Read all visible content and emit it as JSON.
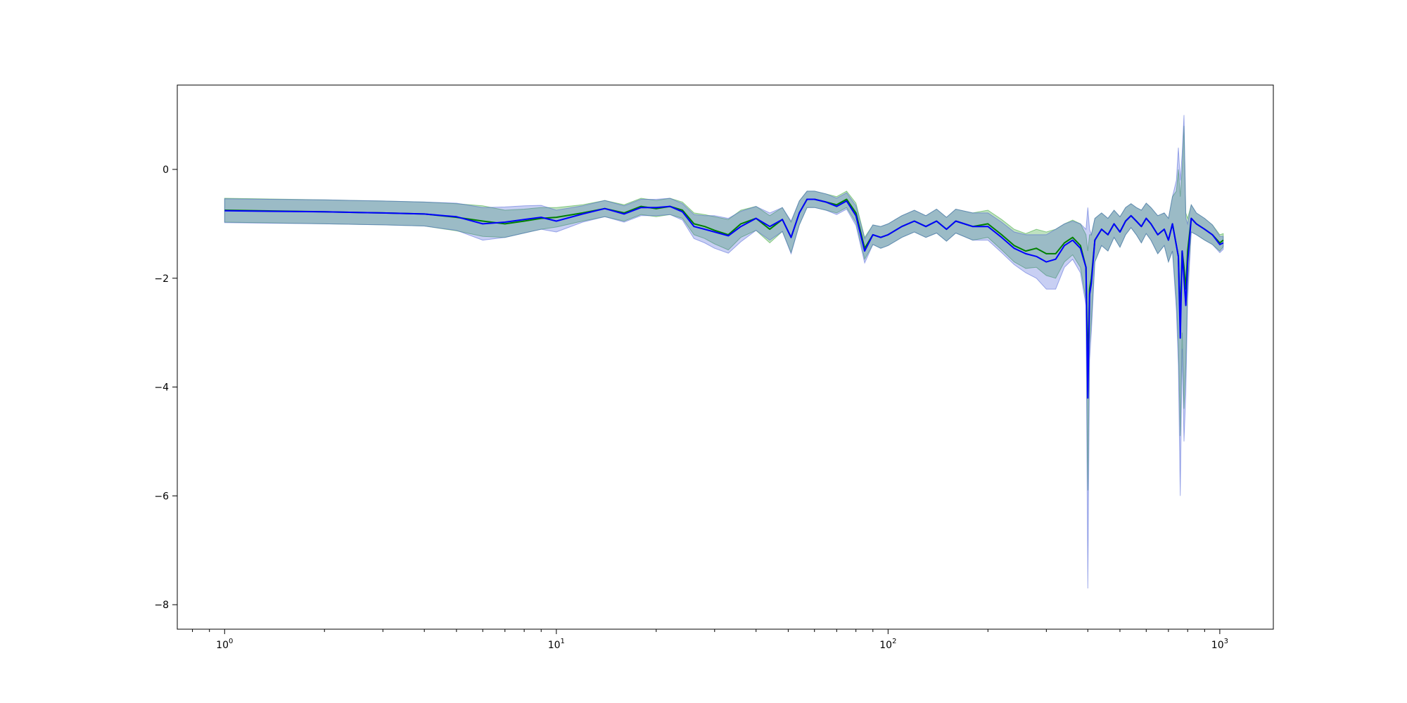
{
  "chart_data": {
    "type": "line",
    "title": "",
    "xlabel": "",
    "ylabel": "",
    "x_scale": "log",
    "xlim": [
      0.72,
      1450
    ],
    "ylim": [
      -8.45,
      1.55
    ],
    "grid": false,
    "legend": "none",
    "x_ticks": [
      {
        "value": 1,
        "base": "10",
        "exp": "0"
      },
      {
        "value": 10,
        "base": "10",
        "exp": "1"
      },
      {
        "value": 100,
        "base": "10",
        "exp": "2"
      },
      {
        "value": 1000,
        "base": "10",
        "exp": "3"
      }
    ],
    "y_ticks": [
      {
        "value": 0,
        "label": "0"
      },
      {
        "value": -2,
        "label": "−2"
      },
      {
        "value": -4,
        "label": "−4"
      },
      {
        "value": -6,
        "label": "−6"
      },
      {
        "value": -8,
        "label": "−8"
      }
    ],
    "series": [
      {
        "color": "#008000",
        "band_color": "#2ca02c",
        "x": [
          1,
          2,
          3,
          4,
          5,
          6,
          7,
          8,
          9,
          10,
          12,
          14,
          16,
          18,
          20,
          22,
          24,
          26,
          28,
          30,
          33,
          36,
          40,
          44,
          48,
          51,
          54,
          57,
          60,
          65,
          70,
          75,
          80,
          85,
          90,
          95,
          100,
          110,
          120,
          130,
          140,
          150,
          160,
          180,
          200,
          220,
          240,
          260,
          280,
          300,
          320,
          340,
          360,
          380,
          395,
          400,
          405,
          410,
          420,
          440,
          460,
          480,
          500,
          520,
          540,
          560,
          580,
          600,
          620,
          650,
          680,
          700,
          720,
          740,
          750,
          760,
          770,
          780,
          790,
          800,
          820,
          850,
          900,
          950,
          1000,
          1024
        ],
        "y": [
          -0.75,
          -0.78,
          -0.8,
          -0.82,
          -0.88,
          -0.95,
          -1.0,
          -0.95,
          -0.9,
          -0.88,
          -0.8,
          -0.72,
          -0.8,
          -0.68,
          -0.72,
          -0.68,
          -0.75,
          -1.0,
          -1.05,
          -1.12,
          -1.2,
          -1.0,
          -0.9,
          -1.1,
          -0.92,
          -1.25,
          -0.8,
          -0.55,
          -0.55,
          -0.6,
          -0.65,
          -0.55,
          -0.8,
          -1.45,
          -1.2,
          -1.25,
          -1.2,
          -1.05,
          -0.95,
          -1.05,
          -0.95,
          -1.1,
          -0.95,
          -1.05,
          -1.0,
          -1.2,
          -1.4,
          -1.5,
          -1.45,
          -1.55,
          -1.55,
          -1.35,
          -1.25,
          -1.4,
          -1.8,
          -3.7,
          -2.2,
          -2.0,
          -1.3,
          -1.1,
          -1.2,
          -1.0,
          -1.15,
          -0.95,
          -0.85,
          -0.95,
          -1.05,
          -0.9,
          -1.0,
          -1.2,
          -1.1,
          -1.3,
          -1.0,
          -1.4,
          -1.6,
          -2.7,
          -1.5,
          -1.8,
          -2.2,
          -1.5,
          -0.9,
          -1.0,
          -1.1,
          -1.2,
          -1.35,
          -1.3
        ],
        "band": [
          0.22,
          0.22,
          0.22,
          0.22,
          0.25,
          0.28,
          0.25,
          0.22,
          0.2,
          0.18,
          0.15,
          0.15,
          0.15,
          0.15,
          0.15,
          0.15,
          0.15,
          0.2,
          0.22,
          0.25,
          0.28,
          0.25,
          0.22,
          0.25,
          0.22,
          0.28,
          0.22,
          0.15,
          0.15,
          0.15,
          0.15,
          0.15,
          0.18,
          0.2,
          0.18,
          0.2,
          0.2,
          0.2,
          0.2,
          0.2,
          0.22,
          0.22,
          0.22,
          0.25,
          0.25,
          0.28,
          0.3,
          0.32,
          0.35,
          0.4,
          0.45,
          0.35,
          0.32,
          0.4,
          0.6,
          2.2,
          1.0,
          0.8,
          0.4,
          0.3,
          0.3,
          0.25,
          0.28,
          0.25,
          0.22,
          0.25,
          0.3,
          0.28,
          0.3,
          0.35,
          0.3,
          0.4,
          0.5,
          1.0,
          1.6,
          2.2,
          1.5,
          2.6,
          1.4,
          0.6,
          0.25,
          0.2,
          0.2,
          0.18,
          0.15,
          0.12
        ]
      },
      {
        "color": "#0000ff",
        "band_color": "#4a5fd8",
        "x": [
          1,
          2,
          3,
          4,
          5,
          6,
          7,
          8,
          9,
          10,
          12,
          14,
          16,
          18,
          20,
          22,
          24,
          26,
          28,
          30,
          33,
          36,
          40,
          44,
          48,
          51,
          54,
          57,
          60,
          65,
          70,
          75,
          80,
          85,
          90,
          95,
          100,
          110,
          120,
          130,
          140,
          150,
          160,
          180,
          200,
          220,
          240,
          260,
          280,
          300,
          320,
          340,
          360,
          380,
          395,
          400,
          405,
          410,
          420,
          440,
          460,
          480,
          500,
          520,
          540,
          560,
          580,
          600,
          620,
          650,
          680,
          700,
          720,
          740,
          750,
          760,
          770,
          780,
          790,
          800,
          820,
          850,
          900,
          950,
          1000,
          1024
        ],
        "y": [
          -0.76,
          -0.78,
          -0.8,
          -0.82,
          -0.87,
          -1.0,
          -0.97,
          -0.92,
          -0.88,
          -0.95,
          -0.82,
          -0.72,
          -0.82,
          -0.7,
          -0.7,
          -0.68,
          -0.78,
          -1.05,
          -1.1,
          -1.15,
          -1.22,
          -1.05,
          -0.9,
          -1.05,
          -0.92,
          -1.25,
          -0.8,
          -0.55,
          -0.55,
          -0.6,
          -0.68,
          -0.58,
          -0.85,
          -1.5,
          -1.2,
          -1.25,
          -1.2,
          -1.05,
          -0.95,
          -1.05,
          -0.95,
          -1.1,
          -0.95,
          -1.05,
          -1.05,
          -1.25,
          -1.45,
          -1.55,
          -1.6,
          -1.7,
          -1.65,
          -1.4,
          -1.3,
          -1.45,
          -1.8,
          -4.2,
          -2.3,
          -2.1,
          -1.3,
          -1.1,
          -1.2,
          -1.0,
          -1.15,
          -0.95,
          -0.85,
          -0.95,
          -1.05,
          -0.9,
          -1.0,
          -1.2,
          -1.1,
          -1.3,
          -1.0,
          -1.4,
          -1.6,
          -3.1,
          -1.5,
          -2.0,
          -2.5,
          -1.7,
          -0.9,
          -1.0,
          -1.1,
          -1.2,
          -1.38,
          -1.35
        ],
        "band": [
          0.22,
          0.22,
          0.22,
          0.22,
          0.25,
          0.3,
          0.28,
          0.25,
          0.22,
          0.2,
          0.15,
          0.15,
          0.15,
          0.15,
          0.15,
          0.15,
          0.15,
          0.22,
          0.25,
          0.3,
          0.32,
          0.28,
          0.22,
          0.25,
          0.22,
          0.3,
          0.22,
          0.15,
          0.15,
          0.15,
          0.15,
          0.15,
          0.18,
          0.22,
          0.18,
          0.2,
          0.2,
          0.2,
          0.2,
          0.2,
          0.22,
          0.22,
          0.22,
          0.25,
          0.25,
          0.28,
          0.3,
          0.35,
          0.4,
          0.5,
          0.55,
          0.4,
          0.35,
          0.45,
          0.7,
          3.5,
          1.2,
          0.9,
          0.4,
          0.3,
          0.3,
          0.25,
          0.28,
          0.25,
          0.22,
          0.25,
          0.3,
          0.28,
          0.3,
          0.35,
          0.3,
          0.4,
          0.5,
          1.2,
          2.0,
          2.9,
          1.8,
          3.0,
          1.6,
          0.7,
          0.25,
          0.2,
          0.2,
          0.18,
          0.15,
          0.12
        ]
      }
    ]
  }
}
